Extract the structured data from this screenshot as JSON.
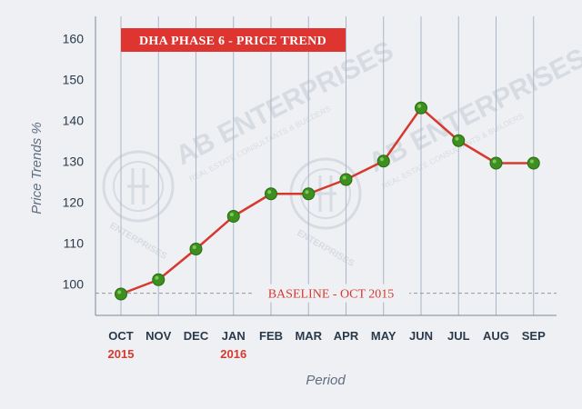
{
  "chart_data": {
    "type": "line",
    "title": "DHA PHASE 6 - PRICE TREND",
    "xlabel": "Period",
    "ylabel": "Price Trends %",
    "categories": [
      "OCT",
      "NOV",
      "DEC",
      "JAN",
      "FEB",
      "MAR",
      "APR",
      "MAY",
      "JUN",
      "JUL",
      "AUG",
      "SEP"
    ],
    "year_labels": [
      "2015",
      "",
      "",
      "2016",
      "",
      "",
      "",
      "",
      "",
      "",
      "",
      ""
    ],
    "values": [
      97.5,
      101,
      108.5,
      116.5,
      122,
      122,
      125.5,
      130,
      143,
      135,
      129.5,
      129.5
    ],
    "ylim": [
      92,
      166
    ],
    "yticks": [
      100,
      110,
      120,
      130,
      140,
      150,
      160
    ],
    "baseline": {
      "label": "BASELINE - OCT 2015",
      "value": 97.7
    },
    "grid": "vertical",
    "colors": {
      "line": "#d63a2f",
      "marker": "#3d8f1f",
      "grid": "#aab6c6",
      "title_bg": "#de3530"
    }
  },
  "watermark": {
    "name": "AB ENTERPRISES",
    "tagline": "REAL ESTATE CONSULTANTS & BUILDERS",
    "seal_text": "ENTERPRISES"
  }
}
